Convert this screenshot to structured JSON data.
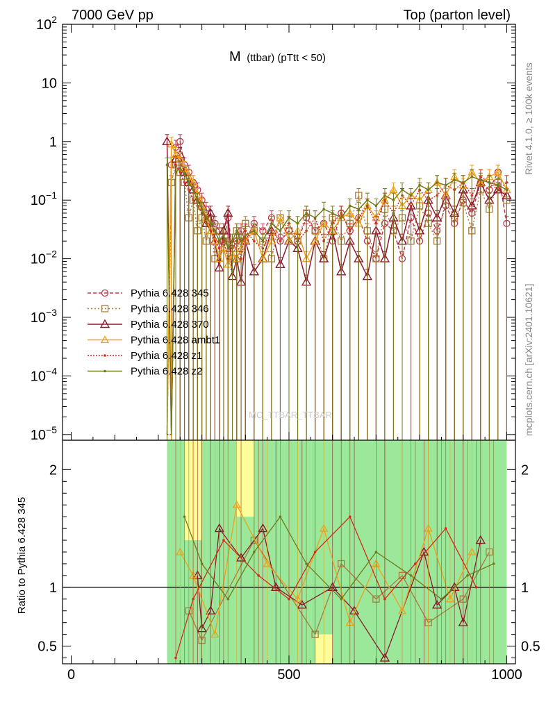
{
  "header": {
    "left": "7000 GeV pp",
    "right": "Top (parton level)"
  },
  "side_labels": {
    "rivet": "Rivet 4.1.0, ≥ 100k events",
    "mcplots": "mcplots.cern.ch [arXiv:2401.10621]"
  },
  "watermark": "MC_TTBAR_TTBAR",
  "chart_data": [
    {
      "type": "line",
      "panel": "main",
      "title_main": "M",
      "title_sub": "(ttbar) (pTtt < 50)",
      "xlabel": "",
      "ylabel": "",
      "xlim": [
        -20,
        1020
      ],
      "ylim": [
        8e-06,
        100
      ],
      "yscale": "log",
      "xticks": [
        0,
        500,
        1000
      ],
      "yticks": [
        {
          "v": 100,
          "base": "10",
          "exp": "2"
        },
        {
          "v": 10,
          "base": "10",
          "exp": ""
        },
        {
          "v": 1,
          "base": "1",
          "exp": ""
        },
        {
          "v": 0.1,
          "base": "10",
          "exp": "−1"
        },
        {
          "v": 0.01,
          "base": "10",
          "exp": "−2"
        },
        {
          "v": 0.001,
          "base": "10",
          "exp": "−3"
        },
        {
          "v": 0.0001,
          "base": "10",
          "exp": "−4"
        },
        {
          "v": 1e-05,
          "base": "10",
          "exp": "−5"
        }
      ],
      "x": [
        220,
        230,
        240,
        250,
        260,
        270,
        280,
        290,
        300,
        310,
        320,
        330,
        340,
        350,
        360,
        370,
        380,
        390,
        400,
        420,
        440,
        460,
        480,
        500,
        520,
        540,
        560,
        580,
        600,
        620,
        640,
        660,
        680,
        700,
        720,
        740,
        760,
        780,
        800,
        820,
        840,
        860,
        880,
        900,
        920,
        940,
        960,
        980,
        1000
      ],
      "series": [
        {
          "name": "Pythia 6.428 345",
          "color": "#c0394b",
          "marker": "circle",
          "dash": "5,3",
          "values": [
            1e-05,
            0.4,
            0.8,
            1.0,
            0.4,
            0.3,
            0.2,
            0.15,
            0.1,
            0.07,
            0.05,
            0.04,
            0.03,
            0.02,
            0.05,
            0.015,
            0.02,
            0.03,
            0.02,
            0.04,
            0.03,
            0.05,
            0.02,
            0.03,
            0.02,
            0.05,
            0.03,
            0.04,
            0.02,
            0.06,
            0.03,
            0.05,
            0.02,
            0.01,
            0.04,
            0.03,
            0.01,
            0.05,
            0.02,
            0.06,
            0.03,
            0.08,
            0.04,
            0.1,
            0.06,
            0.2,
            0.15,
            0.3,
            0.04
          ]
        },
        {
          "name": "Pythia 6.428 346",
          "color": "#a67c3c",
          "marker": "square",
          "dash": "2,3",
          "values": [
            1e-05,
            0.2,
            0.4,
            0.3,
            0.2,
            0.05,
            0.1,
            0.03,
            0.05,
            0.02,
            0.04,
            0.01,
            0.03,
            0.02,
            0.02,
            0.01,
            0.03,
            0.02,
            0.04,
            0.03,
            0.02,
            0.01,
            0.05,
            0.03,
            0.02,
            0.06,
            0.03,
            0.01,
            0.05,
            0.02,
            0.04,
            0.12,
            0.03,
            0.01,
            0.07,
            0.03,
            0.05,
            0.02,
            0.08,
            0.04,
            0.02,
            0.1,
            0.05,
            0.09,
            0.03,
            0.15,
            0.07,
            0.2,
            0.1
          ]
        },
        {
          "name": "Pythia 6.428 370",
          "color": "#8b1a2b",
          "marker": "triangle",
          "dash": "",
          "values": [
            1.0,
            1e-05,
            0.5,
            0.6,
            0.3,
            0.2,
            0.15,
            0.1,
            0.08,
            0.04,
            0.06,
            0.02,
            0.007,
            0.03,
            0.06,
            0.005,
            0.01,
            0.004,
            0.02,
            0.006,
            0.01,
            0.03,
            0.008,
            0.02,
            0.015,
            0.004,
            0.02,
            0.01,
            0.03,
            0.006,
            0.02,
            0.01,
            0.005,
            0.03,
            0.01,
            0.05,
            0.02,
            0.08,
            0.03,
            0.1,
            0.05,
            0.12,
            0.06,
            0.15,
            0.08,
            0.2,
            0.1,
            0.15,
            0.12
          ]
        },
        {
          "name": "Pythia 6.428 ambt1",
          "color": "#f0a018",
          "marker": "triangle-open",
          "dash": "",
          "values": [
            1e-05,
            0.9,
            0.6,
            0.5,
            0.35,
            0.25,
            0.2,
            0.12,
            0.08,
            0.05,
            0.03,
            0.02,
            0.01,
            0.015,
            0.008,
            0.012,
            0.01,
            0.015,
            0.02,
            0.03,
            0.01,
            0.02,
            0.05,
            0.02,
            0.03,
            0.01,
            0.02,
            0.04,
            0.03,
            0.05,
            0.06,
            0.04,
            0.08,
            0.05,
            0.1,
            0.15,
            0.08,
            0.12,
            0.1,
            0.15,
            0.2,
            0.12,
            0.25,
            0.18,
            0.3,
            0.2,
            0.25,
            0.3,
            0.15
          ]
        },
        {
          "name": "Pythia 6.428 z1",
          "color": "#d42a1a",
          "marker": "dot",
          "dash": "2,2",
          "values": [
            1e-05,
            1e-05,
            0.4,
            0.3,
            0.2,
            0.15,
            0.1,
            0.08,
            0.06,
            0.04,
            0.03,
            0.02,
            0.015,
            0.02,
            0.01,
            0.015,
            0.02,
            0.01,
            0.03,
            0.02,
            0.015,
            0.03,
            0.02,
            0.04,
            0.02,
            0.03,
            0.05,
            0.02,
            0.04,
            0.06,
            0.03,
            0.05,
            0.08,
            0.04,
            0.1,
            0.06,
            0.12,
            0.08,
            0.15,
            0.1,
            0.12,
            0.18,
            0.15,
            0.2,
            0.12,
            0.25,
            0.2,
            0.15,
            0.2
          ]
        },
        {
          "name": "Pythia 6.428 z2",
          "color": "#707a1a",
          "marker": "dot",
          "dash": "",
          "values": [
            0.4,
            1e-05,
            0.3,
            0.35,
            0.28,
            0.2,
            0.15,
            0.1,
            0.07,
            0.05,
            0.04,
            0.03,
            0.02,
            0.025,
            0.015,
            0.02,
            0.03,
            0.02,
            0.025,
            0.03,
            0.02,
            0.04,
            0.03,
            0.05,
            0.04,
            0.06,
            0.05,
            0.07,
            0.06,
            0.05,
            0.08,
            0.07,
            0.1,
            0.08,
            0.12,
            0.1,
            0.15,
            0.12,
            0.18,
            0.15,
            0.2,
            0.18,
            0.22,
            0.2,
            0.25,
            0.22,
            0.2,
            0.18,
            0.15
          ]
        }
      ]
    },
    {
      "type": "line",
      "panel": "ratio",
      "ylabel": "Ratio to Pythia 6.428 345",
      "xlim": [
        -20,
        1020
      ],
      "ylim": [
        0.35,
        2.25
      ],
      "xticks": [
        0,
        500,
        1000
      ],
      "yticks": [
        0.5,
        1,
        2
      ],
      "reference": 1,
      "bands": [
        {
          "x0": 220,
          "x1": 1000,
          "color": "#9be89b",
          "lo": 0.35,
          "hi": 2.25
        },
        {
          "x0": 260,
          "x1": 300,
          "color": "#ffff99",
          "lo": 1.4,
          "hi": 2.25
        },
        {
          "x0": 380,
          "x1": 420,
          "color": "#ffff99",
          "lo": 1.6,
          "hi": 2.25
        },
        {
          "x0": 560,
          "x1": 600,
          "color": "#ffff99",
          "lo": 0.35,
          "hi": 0.6
        }
      ],
      "series": [
        {
          "name": "Pythia 6.428 346",
          "color": "#a67c3c",
          "marker": "square",
          "points": [
            [
              270,
              0.8
            ],
            [
              300,
              0.55
            ],
            [
              420,
              1.4
            ],
            [
              560,
              0.6
            ],
            [
              620,
              1.2
            ],
            [
              700,
              0.9
            ],
            [
              760,
              1.1
            ],
            [
              820,
              0.7
            ],
            [
              900,
              0.9
            ],
            [
              960,
              1.3
            ]
          ]
        },
        {
          "name": "Pythia 6.428 370",
          "color": "#8b1a2b",
          "marker": "triangle",
          "points": [
            [
              290,
              1.1
            ],
            [
              300,
              0.65
            ],
            [
              320,
              0.8
            ],
            [
              340,
              1.5
            ],
            [
              390,
              1.25
            ],
            [
              440,
              1.5
            ],
            [
              470,
              1.0
            ],
            [
              530,
              0.85
            ],
            [
              600,
              1.0
            ],
            [
              650,
              0.8
            ],
            [
              720,
              0.4
            ],
            [
              810,
              1.3
            ],
            [
              840,
              0.85
            ],
            [
              880,
              1.0
            ],
            [
              900,
              0.7
            ],
            [
              940,
              1.4
            ]
          ]
        },
        {
          "name": "Pythia 6.428 ambt1",
          "color": "#f0a018",
          "marker": "triangle-open",
          "points": [
            [
              250,
              1.3
            ],
            [
              280,
              1.1
            ],
            [
              330,
              0.6
            ],
            [
              380,
              1.7
            ],
            [
              450,
              1.2
            ],
            [
              520,
              0.9
            ],
            [
              580,
              1.5
            ],
            [
              640,
              0.7
            ],
            [
              700,
              1.2
            ],
            [
              760,
              0.8
            ],
            [
              820,
              1.5
            ],
            [
              870,
              0.9
            ],
            [
              920,
              1.3
            ]
          ]
        },
        {
          "name": "Pythia 6.428 z1",
          "color": "#d42a1a",
          "marker": "dot",
          "points": [
            [
              240,
              0.4
            ],
            [
              280,
              0.9
            ],
            [
              350,
              1.4
            ],
            [
              430,
              1.1
            ],
            [
              500,
              0.9
            ],
            [
              560,
              1.3
            ],
            [
              640,
              1.6
            ],
            [
              720,
              0.9
            ],
            [
              790,
              1.2
            ],
            [
              860,
              1.5
            ],
            [
              930,
              1.0
            ]
          ]
        },
        {
          "name": "Pythia 6.428 z2",
          "color": "#707a1a",
          "marker": "dot",
          "points": [
            [
              260,
              1.6
            ],
            [
              300,
              1.2
            ],
            [
              360,
              0.9
            ],
            [
              420,
              1.3
            ],
            [
              480,
              1.6
            ],
            [
              540,
              1.2
            ],
            [
              620,
              0.9
            ],
            [
              700,
              1.3
            ],
            [
              780,
              1.1
            ],
            [
              850,
              0.9
            ],
            [
              910,
              1.1
            ],
            [
              970,
              1.2
            ]
          ]
        }
      ]
    }
  ]
}
